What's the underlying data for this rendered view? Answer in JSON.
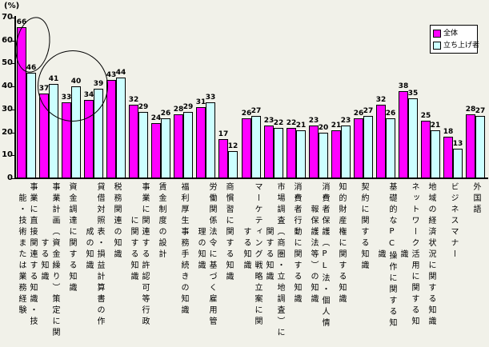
{
  "y_axis": {
    "unit_label": "(%)",
    "ticks": [
      0,
      10,
      20,
      30,
      40,
      50,
      60,
      70
    ]
  },
  "legend": {
    "items": [
      {
        "label": "全体",
        "color": "#FF00FF"
      },
      {
        "label": "立ち上げ者",
        "color": "#CCFFFF"
      }
    ]
  },
  "chart_data": {
    "type": "bar",
    "title": "",
    "ylabel": "(%)",
    "ylim": [
      0,
      70
    ],
    "y_ticks": [
      0,
      10,
      20,
      30,
      40,
      50,
      60,
      70
    ],
    "grid": false,
    "legend_position": "top-right",
    "categories": [
      "事業に直接関連する知識・技能・技術または業務経験",
      "事業計画（資金繰り）策定に関する知識",
      "資金調達に関する知識",
      "貸借対照表・損益計算書の作成の知識",
      "税務関連の知識",
      "事業に関連する許認可等行政に関する知識",
      "賃金制度の設計",
      "福利厚生事務手続きの知識",
      "労働関係法令に基づく雇用管理の知識",
      "商慣習に関する知識",
      "マーケティング戦略立案に関する知識",
      "市場調査（商圏・立地調査）に関する知識",
      "消費者行動に関する知識",
      "消費者保護（PL法・個人情報保護法等）の知識",
      "知的財産権に関する知識",
      "契約に関する知識",
      "基礎的なPC操作に関する知識",
      "ネットワーク活用に関する知識",
      "地域の経済状況に関する知識",
      "ビジネスマナー",
      "外国語"
    ],
    "category_label_lines": [
      [
        "事業に直接関連する知識・技",
        "能・技術または業務経験"
      ],
      [
        "事業計画（資金繰り）策定に関",
        "する知識"
      ],
      [
        "資金調達に関する知識"
      ],
      [
        "貸借対照表・損益計算書の作",
        "成の知識"
      ],
      [
        "税務関連の知識"
      ],
      [
        "事業に関連する許認可等行政",
        "に関する知識"
      ],
      [
        "賃金制度の設計"
      ],
      [
        "福利厚生事務手続きの知識"
      ],
      [
        "労働関係法令に基づく雇用管",
        "理の知識"
      ],
      [
        "商慣習に関する知識"
      ],
      [
        "マーケティング戦略立案に関",
        "する知識"
      ],
      [
        "市場調査（商圏・立地調査）に",
        "関する知識"
      ],
      [
        "消費者行動に関する知識"
      ],
      [
        "消費者保護（PL法・個人情",
        "報保護法等）の知識"
      ],
      [
        "知的財産権に関する知識"
      ],
      [
        "契約に関する知識"
      ],
      [
        "基礎的なPC操作に関する知",
        "識"
      ],
      [
        "ネットワーク活用に関する知",
        "識"
      ],
      [
        "地域の経済状況に関する知識"
      ],
      [
        "ビジネスマナー"
      ],
      [
        "外国語"
      ]
    ],
    "series": [
      {
        "name": "全体",
        "color": "#FF00FF",
        "values": [
          66,
          37,
          33,
          34,
          43,
          32,
          24,
          28,
          31,
          17,
          26,
          23,
          22,
          23,
          21,
          26,
          32,
          38,
          25,
          18,
          28
        ]
      },
      {
        "name": "立ち上げ者",
        "color": "#CCFFFF",
        "values": [
          46,
          41,
          40,
          39,
          44,
          29,
          26,
          29,
          33,
          12,
          27,
          22,
          21,
          20,
          23,
          27,
          26,
          35,
          21,
          13,
          27
        ]
      }
    ]
  }
}
